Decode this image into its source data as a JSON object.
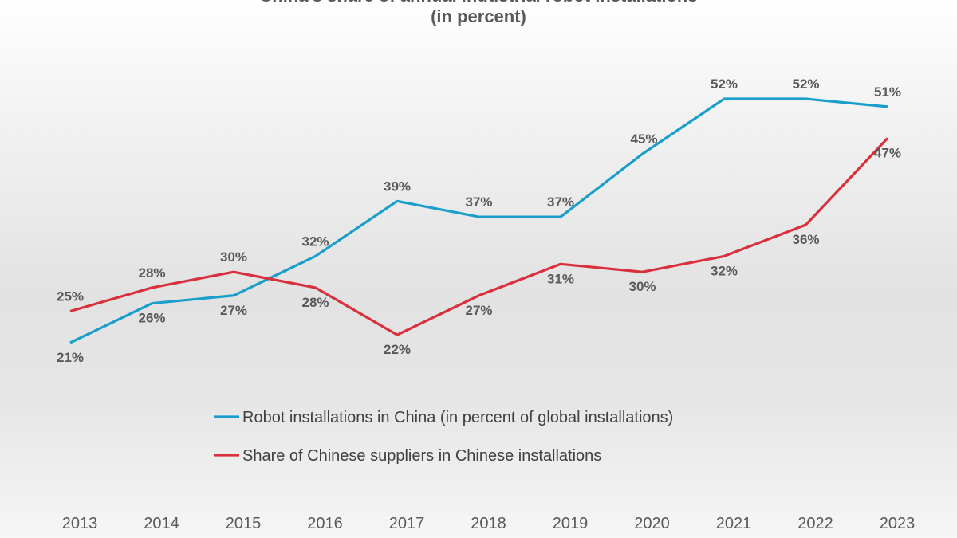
{
  "chart_data": {
    "type": "line",
    "title": "China's share of annual industrial robot installations",
    "subtitle": "(in percent)",
    "categories": [
      "2013",
      "2014",
      "2015",
      "2016",
      "2017",
      "2018",
      "2019",
      "2020",
      "2021",
      "2022",
      "2023"
    ],
    "series": [
      {
        "name": "Robot installations in China (in percent of global installations)",
        "color": "#1a9fcb",
        "values": [
          21,
          26,
          27,
          32,
          39,
          37,
          37,
          45,
          52,
          52,
          51
        ]
      },
      {
        "name": "Share of Chinese suppliers in Chinese installations",
        "color": "#d9303d",
        "values": [
          25,
          28,
          30,
          28,
          22,
          27,
          31,
          30,
          32,
          36,
          47
        ]
      }
    ],
    "data_label_format": "{v}%",
    "legend_position": "bottom",
    "grid": false,
    "xlabel": "",
    "ylabel": ""
  }
}
